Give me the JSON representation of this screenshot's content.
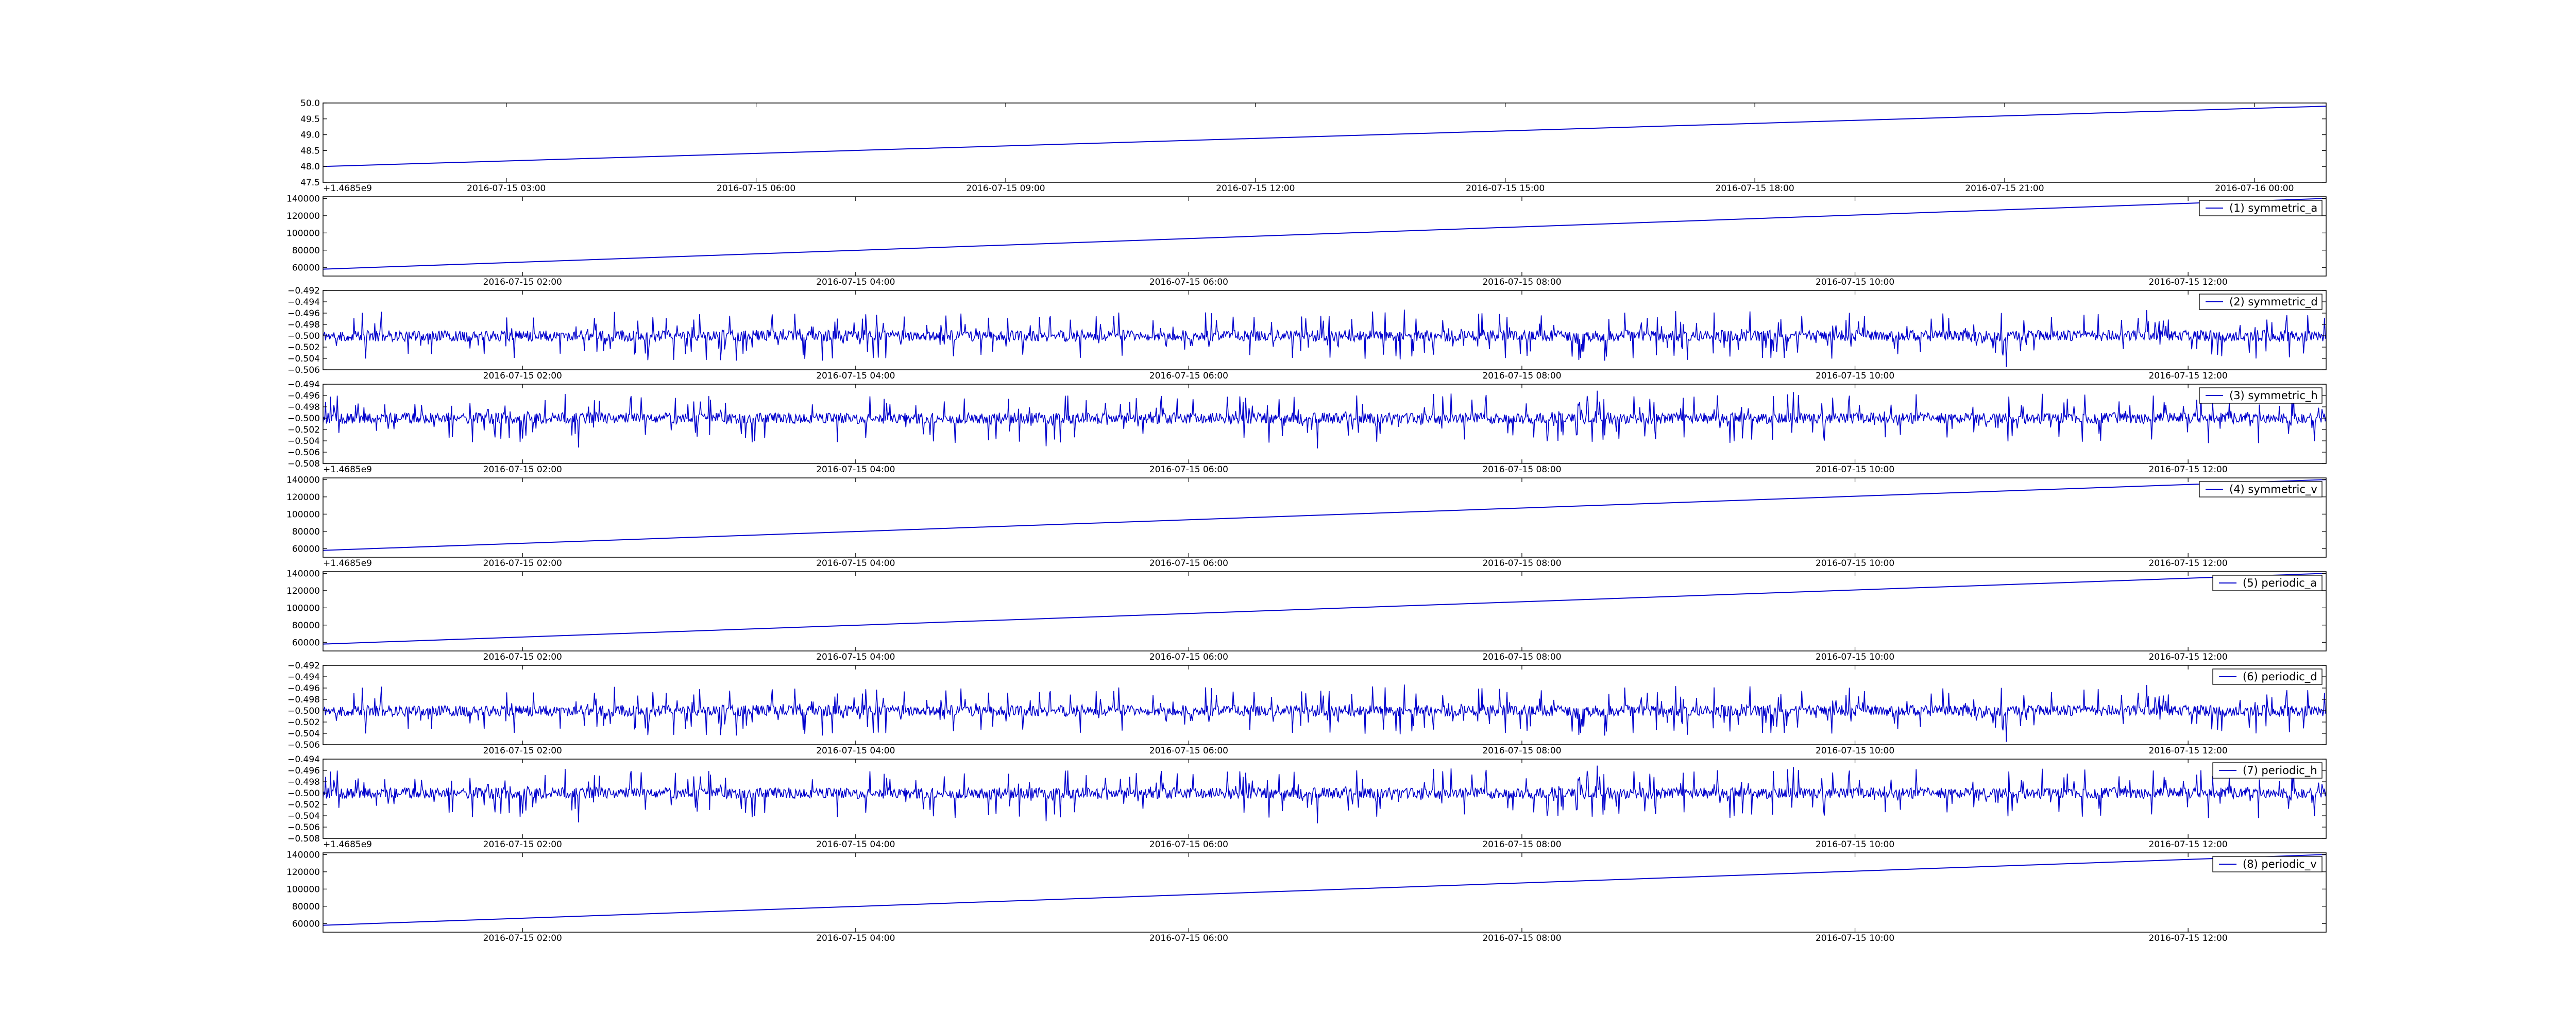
{
  "colors": {
    "line": "#0000cc",
    "axes": "#000000",
    "background": "#ffffff",
    "legend_border": "#000000"
  },
  "chart_data": [
    {
      "type": "line",
      "title": "",
      "xlabel": "",
      "ylabel": "",
      "offset_text": "+1.4685e9",
      "y_ticks": [
        "47.5",
        "48.0",
        "48.5",
        "49.0",
        "49.5",
        "50.0"
      ],
      "ylim": [
        47.5,
        50.0
      ],
      "x_ticks": [
        "2016-07-15 03:00",
        "2016-07-15 06:00",
        "2016-07-15 09:00",
        "2016-07-15 12:00",
        "2016-07-15 15:00",
        "2016-07-15 18:00",
        "2016-07-15 21:00",
        "2016-07-16 00:00"
      ],
      "x_tick_fractions": [
        0.0915,
        0.2162,
        0.3408,
        0.4655,
        0.5902,
        0.7148,
        0.8395,
        0.9642
      ],
      "xlim": [
        "2016-07-15 00:47",
        "2016-07-16 01:11"
      ],
      "series": [
        {
          "x": [
            "2016-07-15 00:47",
            "2016-07-16 01:11"
          ],
          "values": [
            48.0,
            49.9
          ]
        }
      ]
    },
    {
      "type": "line",
      "title": "",
      "xlabel": "",
      "ylabel": "",
      "y_ticks": [
        "60000",
        "80000",
        "100000",
        "120000",
        "140000"
      ],
      "ylim": [
        50000,
        142000
      ],
      "x_ticks": [
        "2016-07-15 02:00",
        "2016-07-15 04:00",
        "2016-07-15 06:00",
        "2016-07-15 08:00",
        "2016-07-15 10:00",
        "2016-07-15 12:00"
      ],
      "x_tick_fractions": [
        0.0996,
        0.2659,
        0.4322,
        0.5985,
        0.7648,
        0.9311
      ],
      "xlim": [
        "2016-07-15 00:48",
        "2016-07-15 13:23"
      ],
      "legend": {
        "label": "(1) symmetric_a",
        "loc": "upper right"
      },
      "series": [
        {
          "x": [
            "2016-07-15 00:48",
            "2016-07-15 13:23"
          ],
          "values": [
            58000,
            140000
          ]
        }
      ]
    },
    {
      "type": "line",
      "title": "",
      "xlabel": "",
      "ylabel": "",
      "y_ticks": [
        "−0.506",
        "−0.504",
        "−0.502",
        "−0.500",
        "−0.498",
        "−0.496",
        "−0.494",
        "−0.492"
      ],
      "ylim": [
        -0.506,
        -0.492
      ],
      "x_ticks": [
        "2016-07-15 02:00",
        "2016-07-15 04:00",
        "2016-07-15 06:00",
        "2016-07-15 08:00",
        "2016-07-15 10:00",
        "2016-07-15 12:00"
      ],
      "x_tick_fractions": [
        0.0996,
        0.2659,
        0.4322,
        0.5985,
        0.7648,
        0.9311
      ],
      "xlim": [
        "2016-07-15 00:48",
        "2016-07-15 13:23"
      ],
      "legend": {
        "label": "(2) symmetric_d",
        "loc": "upper right"
      },
      "series": [
        {
          "kind": "noise",
          "center": -0.5,
          "amplitude": 0.0055,
          "seed": 11
        }
      ]
    },
    {
      "type": "line",
      "title": "",
      "xlabel": "",
      "ylabel": "",
      "offset_text": "+1.4685e9",
      "y_ticks": [
        "−0.508",
        "−0.506",
        "−0.504",
        "−0.502",
        "−0.500",
        "−0.498",
        "−0.496",
        "−0.494"
      ],
      "ylim": [
        -0.508,
        -0.494
      ],
      "x_ticks": [
        "2016-07-15 02:00",
        "2016-07-15 04:00",
        "2016-07-15 06:00",
        "2016-07-15 08:00",
        "2016-07-15 10:00",
        "2016-07-15 12:00"
      ],
      "x_tick_fractions": [
        0.0996,
        0.2659,
        0.4322,
        0.5985,
        0.7648,
        0.9311
      ],
      "xlim": [
        "2016-07-15 00:48",
        "2016-07-15 13:23"
      ],
      "legend": {
        "label": "(3) symmetric_h",
        "loc": "upper right"
      },
      "series": [
        {
          "kind": "noise",
          "center": -0.5,
          "amplitude": 0.0055,
          "seed": 23
        }
      ]
    },
    {
      "type": "line",
      "title": "",
      "xlabel": "",
      "ylabel": "",
      "offset_text": "+1.4685e9",
      "y_ticks": [
        "60000",
        "80000",
        "100000",
        "120000",
        "140000"
      ],
      "ylim": [
        50000,
        142000
      ],
      "x_ticks": [
        "2016-07-15 02:00",
        "2016-07-15 04:00",
        "2016-07-15 06:00",
        "2016-07-15 08:00",
        "2016-07-15 10:00",
        "2016-07-15 12:00"
      ],
      "x_tick_fractions": [
        0.0996,
        0.2659,
        0.4322,
        0.5985,
        0.7648,
        0.9311
      ],
      "xlim": [
        "2016-07-15 00:48",
        "2016-07-15 13:23"
      ],
      "legend": {
        "label": "(4) symmetric_v",
        "loc": "upper right"
      },
      "series": [
        {
          "x": [
            "2016-07-15 00:48",
            "2016-07-15 13:23"
          ],
          "values": [
            58000,
            140000
          ]
        }
      ]
    },
    {
      "type": "line",
      "title": "",
      "xlabel": "",
      "ylabel": "",
      "y_ticks": [
        "60000",
        "80000",
        "100000",
        "120000",
        "140000"
      ],
      "ylim": [
        50000,
        142000
      ],
      "x_ticks": [
        "2016-07-15 02:00",
        "2016-07-15 04:00",
        "2016-07-15 06:00",
        "2016-07-15 08:00",
        "2016-07-15 10:00",
        "2016-07-15 12:00"
      ],
      "x_tick_fractions": [
        0.0996,
        0.2659,
        0.4322,
        0.5985,
        0.7648,
        0.9311
      ],
      "xlim": [
        "2016-07-15 00:48",
        "2016-07-15 13:23"
      ],
      "legend": {
        "label": "(5) periodic_a",
        "loc": "upper right"
      },
      "series": [
        {
          "x": [
            "2016-07-15 00:48",
            "2016-07-15 13:23"
          ],
          "values": [
            58000,
            140000
          ]
        }
      ]
    },
    {
      "type": "line",
      "title": "",
      "xlabel": "",
      "ylabel": "",
      "y_ticks": [
        "−0.506",
        "−0.504",
        "−0.502",
        "−0.500",
        "−0.498",
        "−0.496",
        "−0.494",
        "−0.492"
      ],
      "ylim": [
        -0.506,
        -0.492
      ],
      "x_ticks": [
        "2016-07-15 02:00",
        "2016-07-15 04:00",
        "2016-07-15 06:00",
        "2016-07-15 08:00",
        "2016-07-15 10:00",
        "2016-07-15 12:00"
      ],
      "x_tick_fractions": [
        0.0996,
        0.2659,
        0.4322,
        0.5985,
        0.7648,
        0.9311
      ],
      "xlim": [
        "2016-07-15 00:48",
        "2016-07-15 13:23"
      ],
      "legend": {
        "label": "(6) periodic_d",
        "loc": "upper right"
      },
      "series": [
        {
          "kind": "noise",
          "center": -0.5,
          "amplitude": 0.0055,
          "seed": 11
        }
      ]
    },
    {
      "type": "line",
      "title": "",
      "xlabel": "",
      "ylabel": "",
      "offset_text": "+1.4685e9",
      "y_ticks": [
        "−0.508",
        "−0.506",
        "−0.504",
        "−0.502",
        "−0.500",
        "−0.498",
        "−0.496",
        "−0.494"
      ],
      "ylim": [
        -0.508,
        -0.494
      ],
      "x_ticks": [
        "2016-07-15 02:00",
        "2016-07-15 04:00",
        "2016-07-15 06:00",
        "2016-07-15 08:00",
        "2016-07-15 10:00",
        "2016-07-15 12:00"
      ],
      "x_tick_fractions": [
        0.0996,
        0.2659,
        0.4322,
        0.5985,
        0.7648,
        0.9311
      ],
      "xlim": [
        "2016-07-15 00:48",
        "2016-07-15 13:23"
      ],
      "legend": {
        "label": "(7) periodic_h",
        "loc": "upper right"
      },
      "series": [
        {
          "kind": "noise",
          "center": -0.5,
          "amplitude": 0.0055,
          "seed": 23
        }
      ]
    },
    {
      "type": "line",
      "title": "",
      "xlabel": "",
      "ylabel": "",
      "y_ticks": [
        "60000",
        "80000",
        "100000",
        "120000",
        "140000"
      ],
      "ylim": [
        50000,
        142000
      ],
      "x_ticks": [
        "2016-07-15 02:00",
        "2016-07-15 04:00",
        "2016-07-15 06:00",
        "2016-07-15 08:00",
        "2016-07-15 10:00",
        "2016-07-15 12:00"
      ],
      "x_tick_fractions": [
        0.0996,
        0.2659,
        0.4322,
        0.5985,
        0.7648,
        0.9311
      ],
      "xlim": [
        "2016-07-15 00:48",
        "2016-07-15 13:23"
      ],
      "legend": {
        "label": "(8) periodic_v",
        "loc": "upper right"
      },
      "series": [
        {
          "x": [
            "2016-07-15 00:48",
            "2016-07-15 13:23"
          ],
          "values": [
            58000,
            140000
          ]
        }
      ]
    }
  ]
}
